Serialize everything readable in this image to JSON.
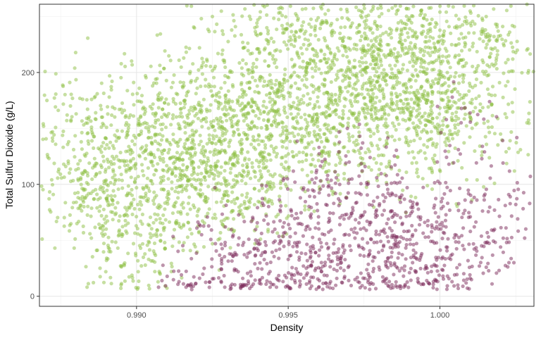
{
  "chart_data": {
    "type": "scatter",
    "title": "",
    "xlabel": "Density",
    "ylabel": "Total Sulfur Dioxide (g/L)",
    "xlim": [
      0.9868,
      1.0031
    ],
    "ylim": [
      -9,
      261
    ],
    "x_ticks": [
      {
        "value": 0.99,
        "label": "0.990"
      },
      {
        "value": 0.995,
        "label": "0.995"
      },
      {
        "value": 1.0,
        "label": "1.000"
      }
    ],
    "y_ticks": [
      {
        "value": 0,
        "label": "0"
      },
      {
        "value": 100,
        "label": "100"
      },
      {
        "value": 200,
        "label": "200"
      }
    ],
    "grid": true,
    "legend": "none",
    "point_opacity": 0.5,
    "series": [
      {
        "color": "#8dc044",
        "points": [
          [
            0.9876,
            118
          ],
          [
            0.9877,
            157
          ],
          [
            0.988,
            113
          ],
          [
            0.9882,
            110
          ],
          [
            0.9884,
            146
          ],
          [
            0.9885,
            92
          ],
          [
            0.9887,
            79
          ],
          [
            0.9888,
            61
          ],
          [
            0.9889,
            125
          ],
          [
            0.989,
            141
          ],
          [
            0.9891,
            178
          ],
          [
            0.9893,
            103
          ],
          [
            0.9895,
            27
          ],
          [
            0.9896,
            120
          ],
          [
            0.9897,
            72
          ],
          [
            0.9898,
            162
          ],
          [
            0.9899,
            47
          ],
          [
            0.99,
            97
          ],
          [
            0.9901,
            154
          ],
          [
            0.9902,
            112
          ],
          [
            0.9903,
            130
          ],
          [
            0.9904,
            33
          ],
          [
            0.9906,
            88
          ],
          [
            0.9907,
            176
          ],
          [
            0.9908,
            106
          ],
          [
            0.9909,
            59
          ],
          [
            0.991,
            140
          ],
          [
            0.9911,
            123
          ],
          [
            0.9912,
            191
          ],
          [
            0.9913,
            84
          ],
          [
            0.9914,
            150
          ],
          [
            0.9915,
            99
          ],
          [
            0.9916,
            172
          ],
          [
            0.9917,
            66
          ],
          [
            0.9918,
            132
          ],
          [
            0.9919,
            110
          ],
          [
            0.992,
            186
          ],
          [
            0.9921,
            95
          ],
          [
            0.9922,
            127
          ],
          [
            0.9923,
            156
          ],
          [
            0.9924,
            78
          ],
          [
            0.9925,
            250
          ],
          [
            0.9926,
            113
          ],
          [
            0.9927,
            168
          ],
          [
            0.9928,
            136
          ],
          [
            0.9929,
            90
          ],
          [
            0.993,
            196
          ],
          [
            0.9931,
            124
          ],
          [
            0.9932,
            147
          ],
          [
            0.9933,
            103
          ],
          [
            0.9934,
            178
          ],
          [
            0.9935,
            117
          ],
          [
            0.9936,
            161
          ],
          [
            0.9937,
            85
          ],
          [
            0.9938,
            200
          ],
          [
            0.9939,
            139
          ],
          [
            0.994,
            247
          ],
          [
            0.9941,
            121
          ],
          [
            0.9942,
            174
          ],
          [
            0.9943,
            152
          ],
          [
            0.9944,
            98
          ],
          [
            0.9945,
            212
          ],
          [
            0.9946,
            133
          ],
          [
            0.9947,
            186
          ],
          [
            0.9948,
            251
          ],
          [
            0.9949,
            164
          ],
          [
            0.995,
            115
          ],
          [
            0.9951,
            225
          ],
          [
            0.9952,
            143
          ],
          [
            0.9953,
            197
          ],
          [
            0.9954,
            172
          ],
          [
            0.9955,
            245
          ],
          [
            0.9956,
            126
          ],
          [
            0.9957,
            208
          ],
          [
            0.9958,
            158
          ],
          [
            0.9959,
            233
          ],
          [
            0.996,
            186
          ],
          [
            0.9961,
            138
          ],
          [
            0.9962,
            216
          ],
          [
            0.9963,
            169
          ],
          [
            0.9964,
            242
          ],
          [
            0.9965,
            150
          ],
          [
            0.9966,
            198
          ],
          [
            0.9967,
            119
          ],
          [
            0.9968,
            228
          ],
          [
            0.9969,
            176
          ],
          [
            0.997,
            247
          ],
          [
            0.9971,
            163
          ],
          [
            0.9972,
            205
          ],
          [
            0.9973,
            136
          ],
          [
            0.9974,
            221
          ],
          [
            0.9975,
            190
          ],
          [
            0.9976,
            154
          ],
          [
            0.9977,
            238
          ],
          [
            0.9978,
            181
          ],
          [
            0.9979,
            212
          ],
          [
            0.998,
            250
          ],
          [
            0.9981,
            167
          ],
          [
            0.9982,
            199
          ],
          [
            0.9983,
            143
          ],
          [
            0.9984,
            231
          ],
          [
            0.9985,
            186
          ],
          [
            0.9986,
            158
          ],
          [
            0.9987,
            215
          ],
          [
            0.9988,
            172
          ],
          [
            0.9989,
            243
          ],
          [
            0.999,
            194
          ],
          [
            0.9991,
            129
          ],
          [
            0.9992,
            222
          ],
          [
            0.9993,
            176
          ],
          [
            0.9994,
            147
          ],
          [
            0.9995,
            209
          ],
          [
            0.9996,
            235
          ],
          [
            0.9997,
            162
          ],
          [
            0.9998,
            190
          ],
          [
            0.9999,
            136
          ],
          [
            1.0,
            254
          ],
          [
            1.0001,
            197
          ],
          [
            1.0002,
            165
          ],
          [
            1.0003,
            241
          ],
          [
            1.0004,
            183
          ],
          [
            1.0005,
            146
          ],
          [
            1.0007,
            211
          ],
          [
            1.0008,
            168
          ],
          [
            1.001,
            244
          ],
          [
            1.0012,
            201
          ],
          [
            1.0015,
            238
          ],
          [
            1.0017,
            171
          ],
          [
            1.002,
            145
          ],
          [
            1.0023,
            236
          ],
          [
            1.0024,
            212
          ]
        ]
      },
      {
        "color": "#7b2a5a",
        "points": [
          [
            0.9914,
            13
          ],
          [
            0.9918,
            11
          ],
          [
            0.9921,
            63
          ],
          [
            0.9924,
            8
          ],
          [
            0.9926,
            47
          ],
          [
            0.9928,
            24
          ],
          [
            0.9931,
            9
          ],
          [
            0.9933,
            37
          ],
          [
            0.9935,
            16
          ],
          [
            0.9937,
            51
          ],
          [
            0.9939,
            29
          ],
          [
            0.9941,
            11
          ],
          [
            0.9942,
            68
          ],
          [
            0.9944,
            22
          ],
          [
            0.9946,
            41
          ],
          [
            0.9947,
            14
          ],
          [
            0.9949,
            57
          ],
          [
            0.995,
            33
          ],
          [
            0.9951,
            76
          ],
          [
            0.9952,
            19
          ],
          [
            0.9953,
            48
          ],
          [
            0.9954,
            88
          ],
          [
            0.9955,
            27
          ],
          [
            0.9956,
            62
          ],
          [
            0.9957,
            12
          ],
          [
            0.9958,
            95
          ],
          [
            0.9959,
            39
          ],
          [
            0.996,
            71
          ],
          [
            0.9961,
            22
          ],
          [
            0.9962,
            55
          ],
          [
            0.9963,
            108
          ],
          [
            0.9964,
            31
          ],
          [
            0.9965,
            83
          ],
          [
            0.9966,
            16
          ],
          [
            0.9967,
            64
          ],
          [
            0.9968,
            44
          ],
          [
            0.9969,
            119
          ],
          [
            0.997,
            27
          ],
          [
            0.9971,
            74
          ],
          [
            0.9972,
            52
          ],
          [
            0.9973,
            13
          ],
          [
            0.9974,
            91
          ],
          [
            0.9975,
            36
          ],
          [
            0.9976,
            67
          ],
          [
            0.9977,
            124
          ],
          [
            0.9978,
            22
          ],
          [
            0.9979,
            58
          ],
          [
            0.998,
            81
          ],
          [
            0.9981,
            41
          ],
          [
            0.9982,
            15
          ],
          [
            0.9983,
            69
          ],
          [
            0.9984,
            101
          ],
          [
            0.9985,
            28
          ],
          [
            0.9986,
            53
          ],
          [
            0.9987,
            84
          ],
          [
            0.9988,
            18
          ],
          [
            0.9989,
            46
          ],
          [
            0.999,
            72
          ],
          [
            0.9991,
            30
          ],
          [
            0.9992,
            59
          ],
          [
            0.9993,
            12
          ],
          [
            0.9994,
            38
          ],
          [
            0.9995,
            66
          ],
          [
            0.9996,
            21
          ],
          [
            0.9997,
            49
          ],
          [
            0.9998,
            79
          ],
          [
            0.9999,
            27
          ],
          [
            1.0,
            101
          ],
          [
            1.0001,
            18
          ],
          [
            1.0002,
            62
          ],
          [
            1.0003,
            34
          ],
          [
            1.0004,
            13
          ],
          [
            1.0005,
            55
          ],
          [
            1.0007,
            155
          ],
          [
            1.0008,
            42
          ],
          [
            1.001,
            71
          ],
          [
            1.0013,
            27
          ],
          [
            1.0014,
            134
          ],
          [
            1.0016,
            53
          ],
          [
            1.0018,
            77
          ],
          [
            1.002,
            44
          ],
          [
            1.0022,
            48
          ],
          [
            1.0025,
            82
          ]
        ]
      }
    ]
  }
}
